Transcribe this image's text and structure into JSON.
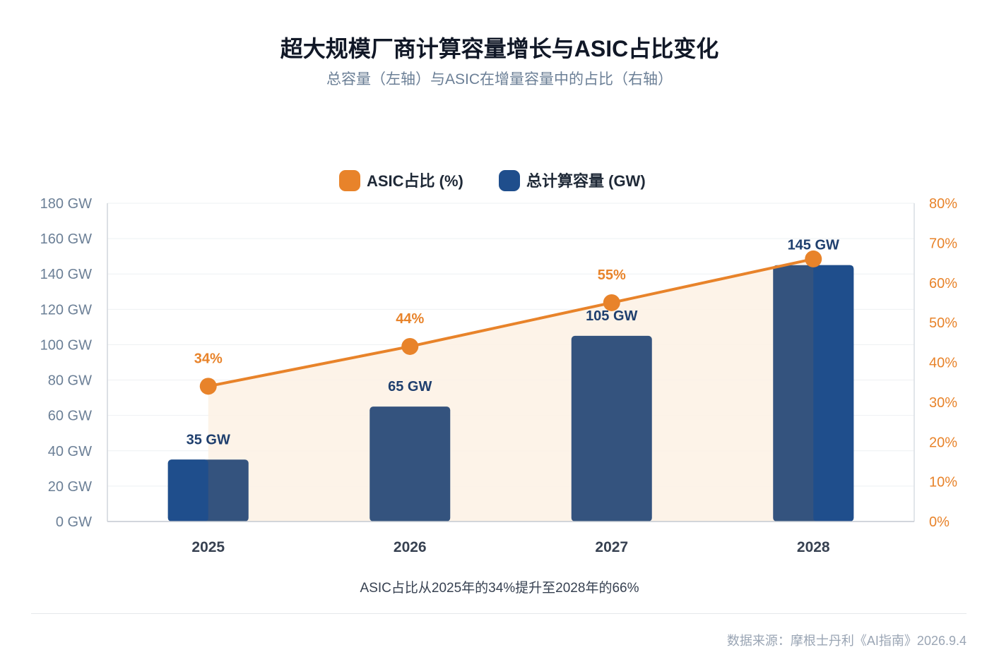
{
  "title": "超大规模厂商计算容量增长与ASIC占比变化",
  "subtitle": "总容量（左轴）与ASIC在增量容量中的占比（右轴）",
  "legend": {
    "asic_label": "ASIC占比 (%)",
    "capacity_label": "总计算容量 (GW)"
  },
  "note": "ASIC占比从2025年的34%提升至2028年的66%",
  "source": "数据来源：摩根士丹利《AI指南》2026.9.4",
  "colors": {
    "bar": "#34537e",
    "bar_highlight": "#1f4e8c",
    "line": "#e8832a",
    "area": "#fdf1e4",
    "left_axis_text": "#6b7f96",
    "right_axis_text": "#e8832a",
    "bar_label": "#1f3f6e",
    "line_label": "#e8832a"
  },
  "chart_data": {
    "type": "bar+line",
    "categories": [
      "2025",
      "2026",
      "2027",
      "2028"
    ],
    "series": [
      {
        "name": "总计算容量 (GW)",
        "type": "bar",
        "axis": "left",
        "values": [
          35,
          65,
          105,
          145
        ],
        "labels": [
          "35 GW",
          "65 GW",
          "105 GW",
          "145 GW"
        ]
      },
      {
        "name": "ASIC占比 (%)",
        "type": "line",
        "axis": "right",
        "values": [
          34,
          44,
          55,
          66
        ],
        "labels": [
          "34%",
          "44%",
          "55%",
          "66%"
        ],
        "shown_labels": [
          "34%",
          "44%",
          "55%",
          ""
        ]
      }
    ],
    "left_axis": {
      "ticks": [
        "0 GW",
        "20 GW",
        "40 GW",
        "60 GW",
        "80 GW",
        "100 GW",
        "120 GW",
        "140 GW",
        "160 GW",
        "180 GW"
      ],
      "ylim": [
        0,
        180
      ]
    },
    "right_axis": {
      "ticks": [
        "0%",
        "10%",
        "20%",
        "30%",
        "40%",
        "50%",
        "60%",
        "70%",
        "80%"
      ],
      "ylim": [
        0,
        80
      ]
    },
    "grid": true,
    "legend_position": "top-center"
  }
}
